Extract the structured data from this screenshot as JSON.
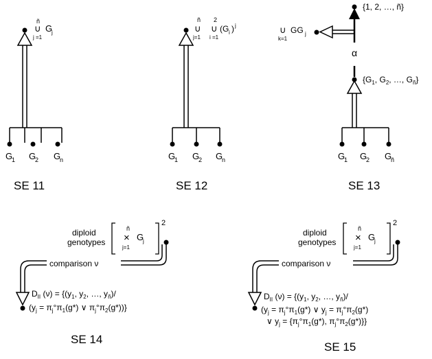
{
  "panels": {
    "se11": {
      "caption": "SE 11",
      "nodes": [
        "G",
        "G",
        "G"
      ],
      "node_subs": [
        "1",
        "2",
        "n"
      ],
      "union_top": "ñ",
      "union_bottom": "j =1",
      "set_label": "G",
      "set_sub": "j"
    },
    "se12": {
      "caption": "SE 12",
      "nodes": [
        "G",
        "G",
        "G"
      ],
      "node_subs": [
        "1",
        "2",
        "n"
      ],
      "union1_top": "ñ",
      "union1_bottom": "j=1",
      "union2_top": "2",
      "union2_bottom": "i =1",
      "set_label": "(G",
      "set_sub": "i",
      "set_close": ")",
      "set_sup": "j"
    },
    "se13": {
      "caption": "SE 13",
      "nodes": [
        "G",
        "G",
        "G"
      ],
      "node_subs": [
        "1",
        "2",
        "ñ"
      ],
      "upper_set": "{1, 2, …, ñ}",
      "middle_set": "{G",
      "middle_set_sub1": "1",
      "middle_set_mid": ", G",
      "middle_set_sub2": "2",
      "middle_set_tail": ", …, G",
      "middle_set_sub3": "ñ",
      "middle_set_close": "}",
      "alpha": "α",
      "union_bottom": "k=1",
      "left_label": "GG",
      "left_sub": "j"
    },
    "se14": {
      "caption": "SE 14",
      "label_line1": "diploid",
      "label_line2": "genotypes",
      "prod_top": "ñ",
      "prod_bottom": "j=1",
      "prod_G": "G",
      "prod_sub": "j",
      "power": "2",
      "comparison": "comparison ν",
      "formula_line1": "D",
      "formula_sub": "II",
      "formula_line1_rest": " (ν) = {(y",
      "f1s1": "1",
      "f1m1": ", y",
      "f1s2": "2",
      "f1m2": ", …, y",
      "f1s3": "ñ",
      "f1end": ")/",
      "formula_line2": "(y",
      "f2s1": "j",
      "f2m1": " = π",
      "f2s2": "j",
      "f2m2": "°π",
      "f2s3": "1",
      "f2m3": "(g*) ∨ π",
      "f2s4": "j",
      "f2m4": "°π",
      "f2s5": "2",
      "f2end": "(g*))}"
    },
    "se15": {
      "caption": "SE 15",
      "label_line1": "diploid",
      "label_line2": "genotypes",
      "prod_top": "ñ",
      "prod_bottom": "j=1",
      "prod_G": "G",
      "prod_sub": "j",
      "power": "2",
      "comparison": "comparison ν",
      "formula_line1": "D",
      "formula_sub": "II",
      "formula_line1_rest": " (ν) = {(y",
      "f1s1": "1",
      "f1m1": ", y",
      "f1s2": "2",
      "f1m2": ", …, y",
      "f1s3": "ñ",
      "f1end": ")/",
      "formula_line2": "(y",
      "f2s1": "j",
      "f2m1": " = π",
      "f2s2": "j",
      "f2m2": "°π",
      "f2s3": "1",
      "f2m3": "(g*) ∨ y",
      "f2s4": "j",
      "f2m4": " = π",
      "f2s5": "j",
      "f2m5": "°π",
      "f2s6": "2",
      "f2end": "(g*)",
      "formula_line3": "∨ y",
      "f3s1": "j",
      "f3m1": " = {π",
      "f3s2": "j",
      "f3m2": "°π",
      "f3s3": "1",
      "f3m3": "(g*), π",
      "f3s4": "j",
      "f3m4": "°π",
      "f3s5": "2",
      "f3end": "(g*)}}"
    }
  }
}
